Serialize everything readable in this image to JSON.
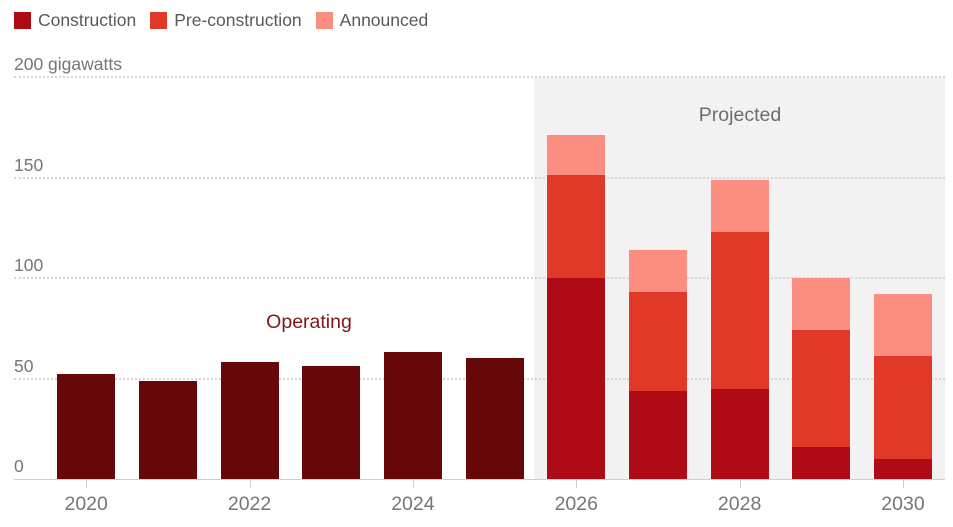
{
  "legend": {
    "items": [
      {
        "label": "Construction",
        "color": "#ae0b17"
      },
      {
        "label": "Pre-construction",
        "color": "#e13928"
      },
      {
        "label": "Announced",
        "color": "#fc8e81"
      }
    ]
  },
  "y_axis": {
    "ticks": [
      {
        "value": 200,
        "label": "200 gigawatts"
      },
      {
        "value": 150,
        "label": "150"
      },
      {
        "value": 100,
        "label": "100"
      },
      {
        "value": 50,
        "label": "50"
      },
      {
        "value": 0,
        "label": "0"
      }
    ]
  },
  "annotations": {
    "operating": "Operating",
    "projected": "Projected"
  },
  "chart_data": {
    "type": "bar",
    "stacked": true,
    "title": "",
    "ylabel": "gigawatts",
    "unit": "gigawatts",
    "ylim": [
      0,
      200
    ],
    "yticks": [
      0,
      50,
      100,
      150,
      200
    ],
    "grid": "horizontal dotted",
    "legend_position": "top-left",
    "categories": [
      2020,
      2021,
      2022,
      2023,
      2024,
      2025,
      2026,
      2027,
      2028,
      2029,
      2030
    ],
    "x_tick_labels": [
      "2020",
      "2022",
      "2024",
      "2026",
      "2028",
      "2030"
    ],
    "operating_years": [
      2020,
      2025
    ],
    "projected_years": [
      2026,
      2030
    ],
    "series": [
      {
        "name": "Operating",
        "color": "#660708",
        "values": [
          52,
          49,
          58,
          56,
          63,
          60,
          null,
          null,
          null,
          null,
          null
        ]
      },
      {
        "name": "Construction",
        "color": "#ae0b17",
        "values": [
          null,
          null,
          null,
          null,
          null,
          null,
          100,
          44,
          45,
          16,
          10
        ]
      },
      {
        "name": "Pre-construction",
        "color": "#e13928",
        "values": [
          null,
          null,
          null,
          null,
          null,
          null,
          51,
          49,
          78,
          58,
          51
        ]
      },
      {
        "name": "Announced",
        "color": "#fc8e81",
        "values": [
          null,
          null,
          null,
          null,
          null,
          null,
          20,
          21,
          26,
          26,
          31
        ]
      }
    ]
  }
}
